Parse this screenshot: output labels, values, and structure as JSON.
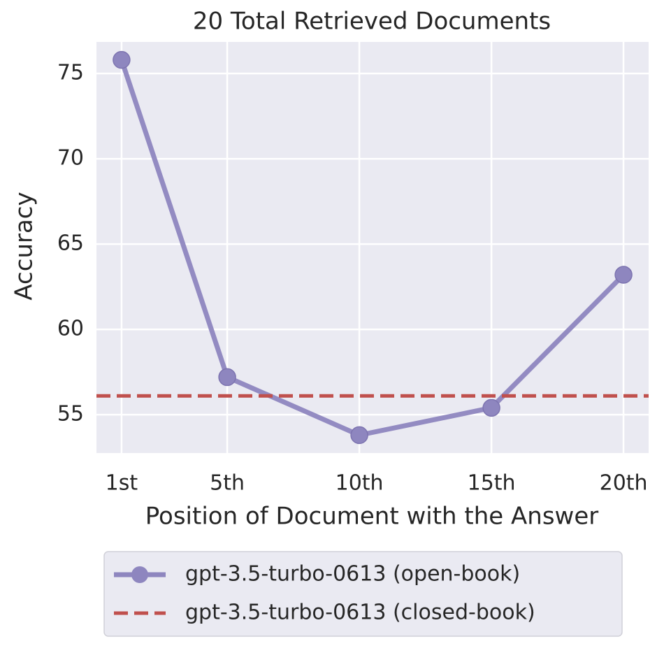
{
  "chart_data": {
    "type": "line",
    "title": "20 Total Retrieved Documents",
    "xlabel": "Position of Document with the Answer",
    "ylabel": "Accuracy",
    "x": [
      1,
      5,
      10,
      15,
      20
    ],
    "xlim": [
      0.05,
      20.95
    ],
    "xticks": [
      {
        "value": 1,
        "label": "1st"
      },
      {
        "value": 5,
        "label": "5th"
      },
      {
        "value": 10,
        "label": "10th"
      },
      {
        "value": 15,
        "label": "15th"
      },
      {
        "value": 20,
        "label": "20th"
      }
    ],
    "ylim": [
      52.75,
      76.85
    ],
    "yticks": [
      55,
      60,
      65,
      70,
      75
    ],
    "grid": true,
    "series": [
      {
        "name": "gpt-3.5-turbo-0613 (open-book)",
        "color": "#8e86bf",
        "values": [
          75.8,
          57.2,
          53.8,
          55.4,
          63.2
        ]
      },
      {
        "name": "gpt-3.5-turbo-0613 (closed-book)",
        "color": "#c0504d",
        "style": "hline",
        "value": 56.1
      }
    ],
    "legend": "below"
  }
}
